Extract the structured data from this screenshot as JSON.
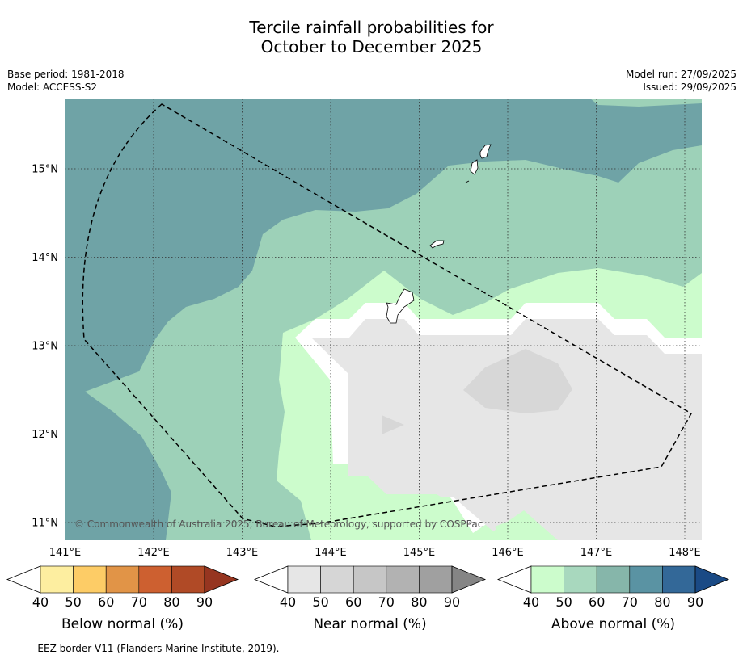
{
  "title": {
    "line1": "Tercile rainfall probabilities for",
    "line2": "October to December 2025"
  },
  "meta_left": {
    "base_period": "Base period: 1981-2018",
    "model": "Model: ACCESS-S2"
  },
  "meta_right": {
    "model_run": "Model run: 27/09/2025",
    "issued": "Issued: 29/09/2025"
  },
  "map": {
    "copyright": "© Commonwealth of Australia 2025, Bureau of Meteorology, supported by COSPPac",
    "lon_labels": [
      "141°E",
      "142°E",
      "143°E",
      "144°E",
      "145°E",
      "146°E",
      "147°E",
      "148°E"
    ],
    "lat_labels": [
      "15°N",
      "14°N",
      "13°N",
      "12°N",
      "11°N"
    ],
    "colors": {
      "above_60_70": "#6fa3a6",
      "above_50_60": "#9dd1b8",
      "above_40_50": "#ccfccc",
      "near_40_50": "#e6e6e6",
      "near_50_60": "#d7d7d7",
      "no_dominant": "#ffffff"
    }
  },
  "colorbars": [
    {
      "title": "Below normal (%)",
      "ticks": [
        "40",
        "50",
        "60",
        "70",
        "80",
        "90"
      ],
      "colors": [
        "#ffffff",
        "#fdeea0",
        "#fdcc66",
        "#e19447",
        "#cd6030",
        "#b04a26",
        "#963520"
      ]
    },
    {
      "title": "Near normal (%)",
      "ticks": [
        "40",
        "50",
        "60",
        "70",
        "80",
        "90"
      ],
      "colors": [
        "#ffffff",
        "#e6e6e6",
        "#d6d6d6",
        "#c6c6c6",
        "#b2b2b2",
        "#a0a0a0",
        "#858585"
      ]
    },
    {
      "title": "Above normal (%)",
      "ticks": [
        "40",
        "50",
        "60",
        "70",
        "80",
        "90"
      ],
      "colors": [
        "#ffffff",
        "#ccfccc",
        "#a8d8be",
        "#86b6aa",
        "#5a93a3",
        "#336898",
        "#1a4a85"
      ]
    }
  ],
  "footnote": "--  --  -- EEZ border V11 (Flanders Marine Institute, 2019)."
}
